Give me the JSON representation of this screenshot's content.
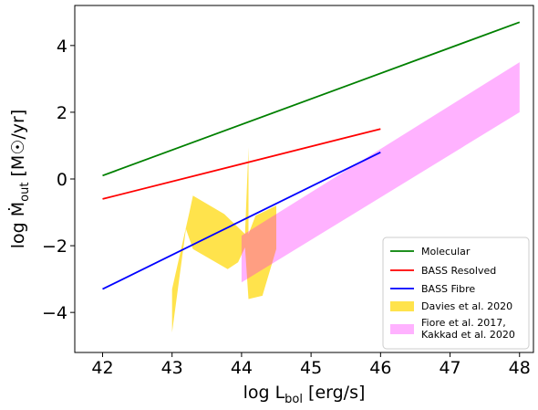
{
  "chart_data": {
    "type": "line",
    "xlabel": "log L",
    "xlabel_sub": "bol",
    "xlabel_units": " [erg/s]",
    "ylabel": "log Ṁ",
    "ylabel_sub": "out",
    "ylabel_units": " [M☉/yr]",
    "xlim": [
      41.6,
      48.2
    ],
    "ylim": [
      -5.2,
      5.2
    ],
    "x_ticks": [
      42,
      43,
      44,
      45,
      46,
      47,
      48
    ],
    "y_ticks": [
      -4,
      -2,
      0,
      2,
      4
    ],
    "legend_position": "bottom-right",
    "series": [
      {
        "name": "Molecular",
        "kind": "line",
        "color": "#008000",
        "x": [
          42,
          48
        ],
        "y": [
          0.1,
          4.7
        ]
      },
      {
        "name": "BASS Resolved",
        "kind": "line",
        "color": "#ff0000",
        "x": [
          42,
          46
        ],
        "y": [
          -0.6,
          1.5
        ]
      },
      {
        "name": "BASS Fibre",
        "kind": "line",
        "color": "#0000ff",
        "x": [
          42,
          46
        ],
        "y": [
          -3.3,
          0.8
        ]
      },
      {
        "name": "Davies et al. 2020",
        "kind": "band",
        "color": "#ffd700",
        "opacity": 0.7,
        "polygons": [
          {
            "x": [
              43.0,
              43.25,
              43.3,
              43.75,
              44.05,
              44.1,
              44.1,
              44.2,
              44.5,
              44.5,
              44.3,
              44.1,
              44.05,
              43.95,
              43.8,
              43.3,
              43.2,
              43.0
            ],
            "y": [
              -3.3,
              -1.0,
              -0.5,
              -1.05,
              -1.65,
              0.95,
              -1.65,
              -1.1,
              -0.8,
              -2.1,
              -3.5,
              -3.6,
              -2.05,
              -2.5,
              -2.7,
              -2.1,
              -1.5,
              -4.6
            ]
          }
        ]
      },
      {
        "name": "Fiore et al. 2017,\nKakkad et al. 2020",
        "kind": "band",
        "color": "#ff00ff",
        "opacity": 0.3,
        "polygons": [
          {
            "x": [
              44.0,
              48.0,
              48.0,
              44.0
            ],
            "y": [
              -1.7,
              3.5,
              2.0,
              -3.1
            ]
          }
        ]
      }
    ]
  }
}
